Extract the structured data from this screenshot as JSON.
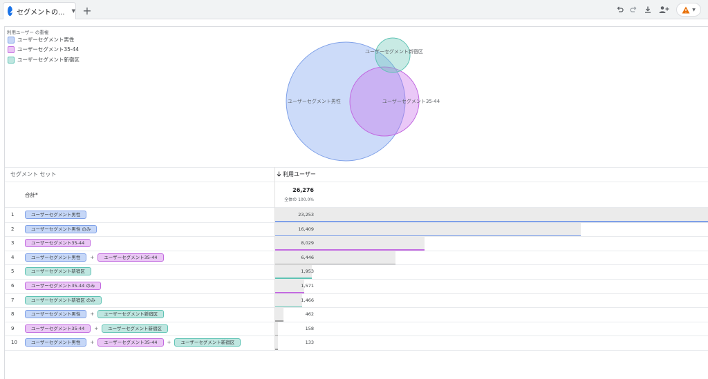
{
  "tab": {
    "title": "セグメントの...",
    "icon": "pencil-icon"
  },
  "toolbar": {
    "icons": [
      "undo-icon",
      "redo-icon",
      "download-icon",
      "add-person-icon",
      "warning-icon"
    ]
  },
  "colors": {
    "male": "#7ea0e8",
    "age": "#c26ae0",
    "shinjuku": "#5ec3b4",
    "overlap3": "#9e9e9e"
  },
  "legend": {
    "title": "利用ユーザー の重複",
    "items": [
      {
        "label": "ユーザーセグメント男性",
        "color": "#c6d7f7",
        "border": "#7ea0e8"
      },
      {
        "label": "ユーザーセグメント35-44",
        "color": "#eac6f5",
        "border": "#c26ae0"
      },
      {
        "label": "ユーザーセグメント新宿区",
        "color": "#bfe6e0",
        "border": "#5ec3b4"
      }
    ]
  },
  "venn": {
    "labels": [
      "ユーザーセグメント男性",
      "ユーザーセグメント35-44",
      "ユーザーセグメント新宿区"
    ]
  },
  "table": {
    "col_segments": "セグメント セット",
    "col_users": "利用ユーザー",
    "total_label": "合計*",
    "total_value": "26,276",
    "total_pct": "全体の 100.0%",
    "max_value": 23253,
    "rows": [
      {
        "num": "1",
        "chips": [
          {
            "label": "ユーザーセグメント男性",
            "type": "male"
          }
        ],
        "value": "23,253",
        "n": 23253,
        "line": "male"
      },
      {
        "num": "2",
        "chips": [
          {
            "label": "ユーザーセグメント男性 のみ",
            "type": "male"
          }
        ],
        "value": "16,409",
        "n": 16409,
        "line": "male"
      },
      {
        "num": "3",
        "chips": [
          {
            "label": "ユーザーセグメント35-44",
            "type": "age"
          }
        ],
        "value": "8,029",
        "n": 8029,
        "line": "age"
      },
      {
        "num": "4",
        "chips": [
          {
            "label": "ユーザーセグメント男性",
            "type": "male"
          },
          {
            "label": "ユーザーセグメント35-44",
            "type": "age"
          }
        ],
        "value": "6,446",
        "n": 6446,
        "line": "overlap3"
      },
      {
        "num": "5",
        "chips": [
          {
            "label": "ユーザーセグメント新宿区",
            "type": "shinjuku"
          }
        ],
        "value": "1,953",
        "n": 1953,
        "line": "shinjuku"
      },
      {
        "num": "6",
        "chips": [
          {
            "label": "ユーザーセグメント35-44 のみ",
            "type": "age"
          }
        ],
        "value": "1,571",
        "n": 1571,
        "line": "age"
      },
      {
        "num": "7",
        "chips": [
          {
            "label": "ユーザーセグメント新宿区 のみ",
            "type": "shinjuku"
          }
        ],
        "value": "1,466",
        "n": 1466,
        "line": "shinjuku"
      },
      {
        "num": "8",
        "chips": [
          {
            "label": "ユーザーセグメント男性",
            "type": "male"
          },
          {
            "label": "ユーザーセグメント新宿区",
            "type": "shinjuku"
          }
        ],
        "value": "462",
        "n": 462,
        "line": "overlap3"
      },
      {
        "num": "9",
        "chips": [
          {
            "label": "ユーザーセグメント35-44",
            "type": "age"
          },
          {
            "label": "ユーザーセグメント新宿区",
            "type": "shinjuku"
          }
        ],
        "value": "158",
        "n": 158,
        "line": "overlap3"
      },
      {
        "num": "10",
        "chips": [
          {
            "label": "ユーザーセグメント男性",
            "type": "male"
          },
          {
            "label": "ユーザーセグメント35-44",
            "type": "age"
          },
          {
            "label": "ユーザーセグメント新宿区",
            "type": "shinjuku"
          }
        ],
        "value": "133",
        "n": 133,
        "line": "overlap3"
      }
    ]
  }
}
